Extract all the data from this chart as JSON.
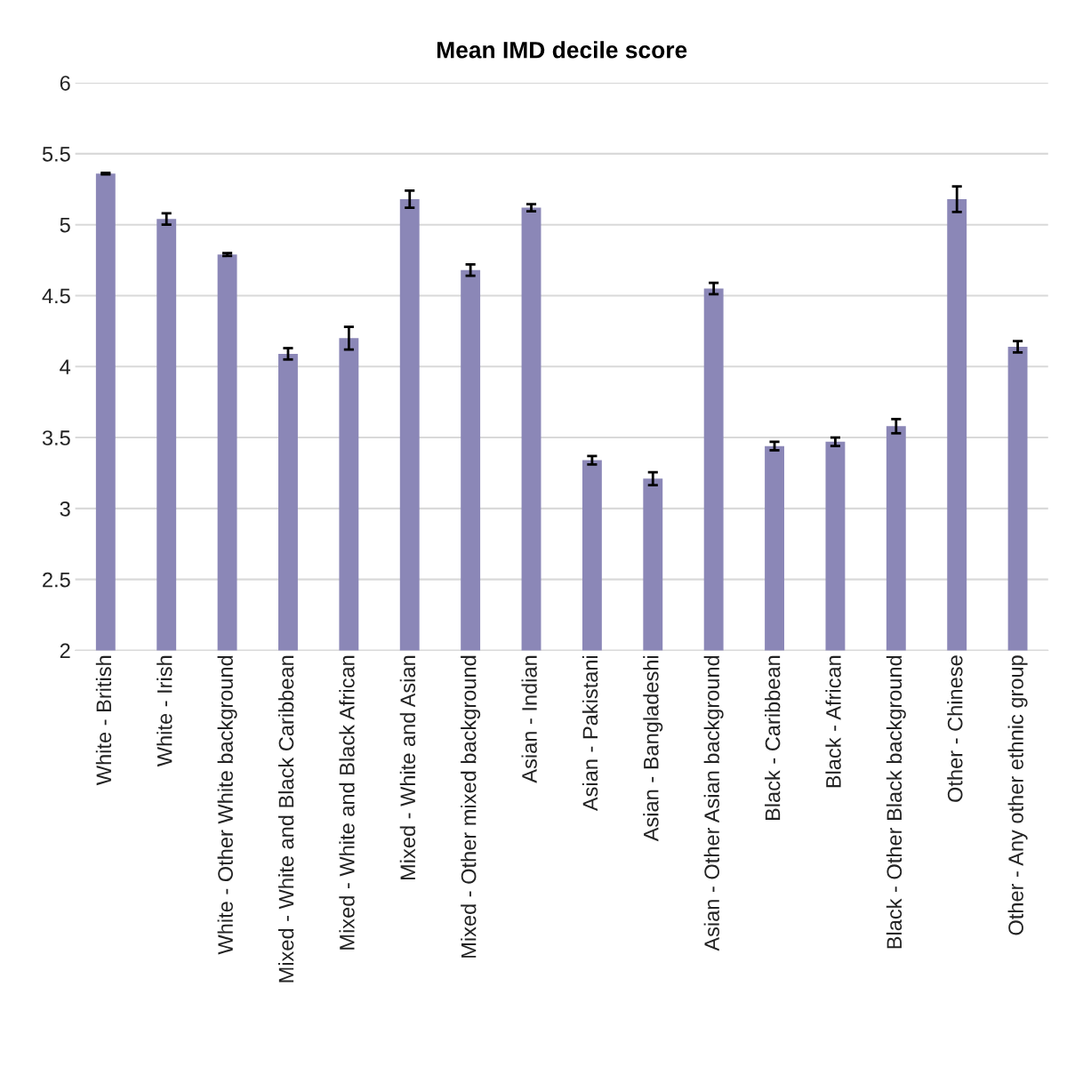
{
  "chart_data": {
    "type": "bar",
    "title": "Mean IMD decile score",
    "categories": [
      "White - British",
      "White - Irish",
      "White - Other White background",
      "Mixed - White and Black Caribbean",
      "Mixed - White and Black African",
      "Mixed - White and Asian",
      "Mixed - Other mixed background",
      "Asian - Indian",
      "Asian - Pakistani",
      "Asian - Bangladeshi",
      "Asian - Other Asian background",
      "Black - Caribbean",
      "Black - African",
      "Black - Other Black background",
      "Other - Chinese",
      "Other - Any other ethnic group"
    ],
    "values": [
      5.36,
      5.04,
      4.79,
      4.09,
      4.2,
      5.18,
      4.68,
      5.12,
      3.34,
      3.21,
      4.55,
      3.44,
      3.47,
      3.58,
      5.18,
      4.14
    ],
    "errors": [
      0.005,
      0.04,
      0.01,
      0.04,
      0.08,
      0.06,
      0.04,
      0.025,
      0.03,
      0.045,
      0.04,
      0.03,
      0.03,
      0.05,
      0.09,
      0.04
    ],
    "color": "#8b87b7",
    "ylim": [
      2,
      6
    ],
    "yticks": [
      2,
      2.5,
      3,
      3.5,
      4,
      4.5,
      5,
      5.5,
      6
    ],
    "grid": "y",
    "legend": false
  }
}
